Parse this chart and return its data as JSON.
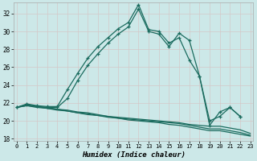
{
  "xlabel": "Humidex (Indice chaleur)",
  "background_color": "#cce8e8",
  "grid_color": "#c8dede",
  "line_color": "#1a6b5e",
  "xlim_min": -0.3,
  "xlim_max": 23.3,
  "ylim_min": 17.8,
  "ylim_max": 33.2,
  "xticks": [
    0,
    1,
    2,
    3,
    4,
    5,
    6,
    7,
    8,
    9,
    10,
    11,
    12,
    13,
    14,
    15,
    16,
    17,
    18,
    19,
    20,
    21,
    22,
    23
  ],
  "yticks": [
    18,
    20,
    22,
    24,
    26,
    28,
    30,
    32
  ],
  "hours": [
    0,
    1,
    2,
    3,
    4,
    5,
    6,
    7,
    8,
    9,
    10,
    11,
    12,
    13,
    14,
    15,
    16,
    17,
    18,
    19,
    20,
    21,
    22,
    23
  ],
  "curve1": [
    21.5,
    21.9,
    21.7,
    21.6,
    21.6,
    23.5,
    25.3,
    27.0,
    28.3,
    29.3,
    30.3,
    31.0,
    33.0,
    30.2,
    30.0,
    28.7,
    29.3,
    26.8,
    25.0,
    19.5,
    21.0,
    21.5,
    20.5,
    null
  ],
  "curve2": [
    21.5,
    21.8,
    21.6,
    21.5,
    21.5,
    22.5,
    24.5,
    26.2,
    27.5,
    28.7,
    29.7,
    30.5,
    32.5,
    30.0,
    29.7,
    28.3,
    29.8,
    29.0,
    25.0,
    20.0,
    20.5,
    21.5,
    20.5,
    null
  ],
  "line_low1": [
    21.5,
    21.8,
    21.6,
    21.5,
    21.3,
    21.2,
    21.0,
    20.9,
    20.7,
    20.5,
    20.4,
    20.3,
    20.2,
    20.1,
    20.0,
    19.9,
    19.8,
    19.6,
    19.5,
    19.4,
    19.4,
    19.2,
    19.0,
    18.6
  ],
  "line_low2": [
    21.5,
    21.7,
    21.5,
    21.4,
    21.3,
    21.1,
    20.9,
    20.8,
    20.6,
    20.5,
    20.3,
    20.2,
    20.1,
    20.0,
    19.9,
    19.8,
    19.7,
    19.5,
    19.3,
    19.1,
    19.1,
    18.9,
    18.7,
    18.4
  ],
  "line_low3": [
    21.5,
    21.7,
    21.6,
    21.4,
    21.2,
    21.1,
    20.9,
    20.7,
    20.6,
    20.4,
    20.3,
    20.1,
    20.0,
    19.9,
    19.8,
    19.6,
    19.5,
    19.3,
    19.1,
    18.9,
    18.9,
    18.7,
    18.5,
    18.3
  ]
}
